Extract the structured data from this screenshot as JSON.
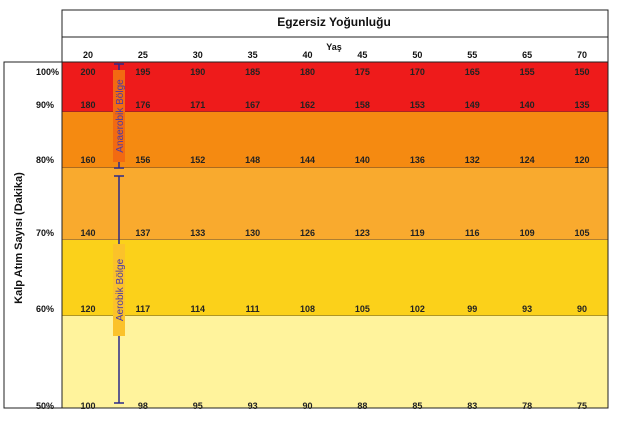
{
  "chart_data": {
    "type": "table",
    "title": "Egzersiz Yoğunluğu",
    "xlabel": "Yaş",
    "ylabel": "Kalp Atım Sayısı (Dakika)",
    "ages": [
      "20",
      "25",
      "30",
      "35",
      "40",
      "45",
      "50",
      "55",
      "65",
      "70"
    ],
    "rows": [
      {
        "pct": "100%",
        "values": [
          200,
          195,
          190,
          185,
          180,
          175,
          170,
          165,
          155,
          150
        ]
      },
      {
        "pct": "90%",
        "values": [
          180,
          176,
          171,
          167,
          162,
          158,
          153,
          149,
          140,
          135
        ]
      },
      {
        "pct": "80%",
        "values": [
          160,
          156,
          152,
          148,
          144,
          140,
          136,
          132,
          124,
          120
        ]
      },
      {
        "pct": "70%",
        "values": [
          140,
          137,
          133,
          130,
          126,
          123,
          119,
          116,
          109,
          105
        ]
      },
      {
        "pct": "60%",
        "values": [
          120,
          117,
          114,
          111,
          108,
          105,
          102,
          99,
          93,
          90
        ]
      },
      {
        "pct": "50%",
        "values": [
          100,
          98,
          95,
          93,
          90,
          88,
          85,
          83,
          78,
          75
        ]
      }
    ],
    "zones": [
      {
        "label": "Anaerobik Bölge",
        "from": 80,
        "to": 100
      },
      {
        "label": "Aerobik Bölge",
        "from": 50,
        "to": 80
      }
    ],
    "band_colors": [
      "#ee1b1b",
      "#f58a11",
      "#f9aa2e",
      "#fbd11a",
      "#fff39c"
    ]
  }
}
